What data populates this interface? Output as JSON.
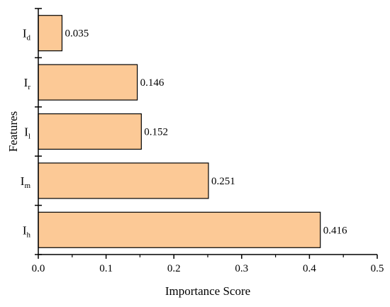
{
  "chart_data": {
    "type": "bar",
    "orientation": "horizontal",
    "xlabel": "Importance Score",
    "ylabel": "Features",
    "xlim": [
      0.0,
      0.5
    ],
    "x_ticks": [
      0.0,
      0.1,
      0.2,
      0.3,
      0.4,
      0.5
    ],
    "x_tick_labels": [
      "0.0",
      "0.1",
      "0.2",
      "0.3",
      "0.4",
      "0.5"
    ],
    "categories": [
      {
        "main": "I",
        "sub": "h"
      },
      {
        "main": "I",
        "sub": "m"
      },
      {
        "main": "I",
        "sub": "l"
      },
      {
        "main": "I",
        "sub": "r"
      },
      {
        "main": "I",
        "sub": "d"
      }
    ],
    "values": [
      0.416,
      0.251,
      0.152,
      0.146,
      0.035
    ],
    "value_labels": [
      "0.416",
      "0.251",
      "0.152",
      "0.146",
      "0.035"
    ],
    "bar_color": "#fcc996",
    "bar_edge_color": "#000000",
    "grid": false,
    "legend": "none"
  }
}
